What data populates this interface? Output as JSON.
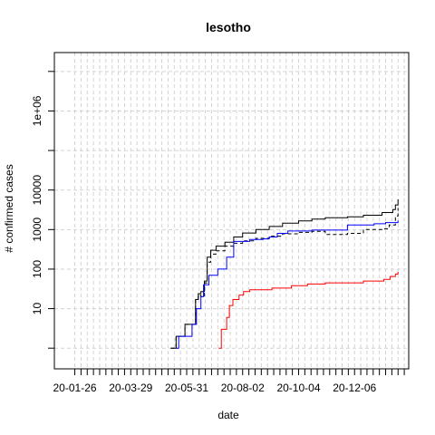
{
  "chart_data": {
    "type": "line",
    "title": "lesotho",
    "xlabel": "date",
    "ylabel": "# confirmed cases",
    "y_scale": "log",
    "grid": true,
    "x_ticks": [
      "20-01-26",
      "20-03-29",
      "20-05-31",
      "20-08-02",
      "20-10-04",
      "20-12-06"
    ],
    "y_ticks": [
      {
        "value": 10,
        "label": "10"
      },
      {
        "value": 100,
        "label": "100"
      },
      {
        "value": 1000,
        "label": "1000"
      },
      {
        "value": 10000,
        "label": "10000"
      },
      {
        "value": 1000000,
        "label": "1e+06"
      }
    ],
    "xlim": [
      "2020-01-03",
      "2021-02-05"
    ],
    "ylim": [
      0.3,
      30000000
    ],
    "series": [
      {
        "color": "#000000",
        "dash": "solid",
        "points": [
          [
            "2020-05-13",
            1
          ],
          [
            "2020-05-19",
            2
          ],
          [
            "2020-05-29",
            4
          ],
          [
            "2020-06-08",
            4
          ],
          [
            "2020-06-10",
            17
          ],
          [
            "2020-06-13",
            24
          ],
          [
            "2020-06-16",
            27
          ],
          [
            "2020-06-20",
            50
          ],
          [
            "2020-06-23",
            200
          ],
          [
            "2020-06-27",
            300
          ],
          [
            "2020-07-03",
            380
          ],
          [
            "2020-07-13",
            480
          ],
          [
            "2020-07-23",
            650
          ],
          [
            "2020-08-02",
            820
          ],
          [
            "2020-08-17",
            1000
          ],
          [
            "2020-09-01",
            1200
          ],
          [
            "2020-09-16",
            1450
          ],
          [
            "2020-10-04",
            1650
          ],
          [
            "2020-10-19",
            1850
          ],
          [
            "2020-11-03",
            2000
          ],
          [
            "2020-11-28",
            2100
          ],
          [
            "2020-12-16",
            2300
          ],
          [
            "2021-01-06",
            2700
          ],
          [
            "2021-01-18",
            3200
          ],
          [
            "2021-01-21",
            4200
          ],
          [
            "2021-01-24",
            5800
          ]
        ]
      },
      {
        "color": "#000000",
        "dash": "dashed",
        "points": [
          [
            "2020-05-13",
            1
          ],
          [
            "2020-05-19",
            2
          ],
          [
            "2020-05-29",
            4
          ],
          [
            "2020-06-08",
            4
          ],
          [
            "2020-06-10",
            17
          ],
          [
            "2020-06-13",
            22
          ],
          [
            "2020-06-16",
            20
          ],
          [
            "2020-06-20",
            45
          ],
          [
            "2020-06-23",
            150
          ],
          [
            "2020-06-27",
            240
          ],
          [
            "2020-07-03",
            290
          ],
          [
            "2020-07-13",
            380
          ],
          [
            "2020-07-23",
            450
          ],
          [
            "2020-08-02",
            520
          ],
          [
            "2020-08-17",
            600
          ],
          [
            "2020-09-01",
            680
          ],
          [
            "2020-09-16",
            780
          ],
          [
            "2020-10-04",
            850
          ],
          [
            "2020-10-19",
            900
          ],
          [
            "2020-11-03",
            750
          ],
          [
            "2020-11-28",
            800
          ],
          [
            "2020-12-16",
            1000
          ],
          [
            "2021-01-06",
            1050
          ],
          [
            "2021-01-14",
            1300
          ],
          [
            "2021-01-21",
            2200
          ],
          [
            "2021-01-24",
            3500
          ]
        ]
      },
      {
        "color": "#0000ff",
        "dash": "solid",
        "points": [
          [
            "2020-05-19",
            1
          ],
          [
            "2020-05-22",
            2
          ],
          [
            "2020-05-31",
            2
          ],
          [
            "2020-06-06",
            4
          ],
          [
            "2020-06-11",
            10
          ],
          [
            "2020-06-16",
            20
          ],
          [
            "2020-06-19",
            40
          ],
          [
            "2020-06-25",
            70
          ],
          [
            "2020-07-05",
            100
          ],
          [
            "2020-07-15",
            200
          ],
          [
            "2020-07-23",
            500
          ],
          [
            "2020-08-10",
            560
          ],
          [
            "2020-08-25",
            580
          ],
          [
            "2020-09-01",
            650
          ],
          [
            "2020-09-10",
            800
          ],
          [
            "2020-09-22",
            920
          ],
          [
            "2020-10-19",
            970
          ],
          [
            "2020-11-28",
            1300
          ],
          [
            "2020-12-28",
            1400
          ],
          [
            "2021-01-10",
            1500
          ],
          [
            "2021-01-24",
            1700
          ]
        ]
      },
      {
        "color": "#ff0000",
        "dash": "solid",
        "points": [
          [
            "2020-07-06",
            1
          ],
          [
            "2020-07-09",
            3
          ],
          [
            "2020-07-15",
            6
          ],
          [
            "2020-07-18",
            12
          ],
          [
            "2020-07-22",
            17
          ],
          [
            "2020-07-29",
            22
          ],
          [
            "2020-08-03",
            27
          ],
          [
            "2020-08-10",
            30
          ],
          [
            "2020-09-04",
            33
          ],
          [
            "2020-09-26",
            38
          ],
          [
            "2020-10-14",
            42
          ],
          [
            "2020-11-03",
            45
          ],
          [
            "2020-12-16",
            50
          ],
          [
            "2021-01-08",
            55
          ],
          [
            "2021-01-15",
            65
          ],
          [
            "2021-01-21",
            75
          ],
          [
            "2021-01-24",
            85
          ]
        ]
      }
    ]
  }
}
